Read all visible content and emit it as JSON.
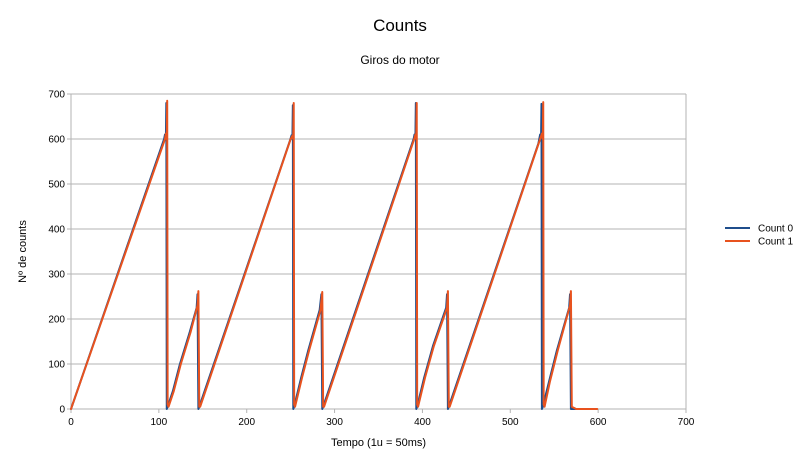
{
  "chart_data": {
    "type": "line",
    "title": "Counts",
    "subtitle": "Giros do motor",
    "xlabel": "Tempo (1u = 50ms)",
    "ylabel": "Nº de counts",
    "xlim": [
      0,
      700
    ],
    "ylim": [
      0,
      700
    ],
    "x_ticks": [
      0,
      100,
      200,
      300,
      400,
      500,
      600,
      700
    ],
    "y_ticks": [
      0,
      100,
      200,
      300,
      400,
      500,
      600,
      700
    ],
    "grid": "horizontal",
    "legend_position": "right",
    "series": [
      {
        "name": "Count 0",
        "color": "#1f4e8c",
        "points": [
          [
            0,
            0
          ],
          [
            106,
            600
          ],
          [
            107,
            610
          ],
          [
            108,
            600
          ],
          [
            108.5,
            680
          ],
          [
            109,
            0
          ],
          [
            110,
            5
          ],
          [
            116,
            40
          ],
          [
            124,
            100
          ],
          [
            135,
            170
          ],
          [
            143,
            225
          ],
          [
            144,
            255
          ],
          [
            145,
            0
          ],
          [
            146,
            5
          ],
          [
            249,
            595
          ],
          [
            251,
            608
          ],
          [
            252,
            600
          ],
          [
            252.5,
            675
          ],
          [
            253,
            0
          ],
          [
            254,
            5
          ],
          [
            262,
            70
          ],
          [
            270,
            130
          ],
          [
            283,
            220
          ],
          [
            285,
            255
          ],
          [
            286,
            0
          ],
          [
            287,
            5
          ],
          [
            390,
            600
          ],
          [
            391,
            610
          ],
          [
            392,
            600
          ],
          [
            392.5,
            680
          ],
          [
            393,
            0
          ],
          [
            394,
            5
          ],
          [
            402,
            70
          ],
          [
            412,
            140
          ],
          [
            427,
            225
          ],
          [
            428,
            255
          ],
          [
            429,
            0
          ],
          [
            430,
            5
          ],
          [
            532,
            590
          ],
          [
            534,
            610
          ],
          [
            535,
            598
          ],
          [
            535.5,
            678
          ],
          [
            536,
            0
          ],
          [
            537,
            5
          ],
          [
            544,
            60
          ],
          [
            553,
            130
          ],
          [
            567,
            225
          ],
          [
            568,
            255
          ],
          [
            569,
            0
          ],
          [
            570,
            0
          ],
          [
            574,
            0
          ]
        ]
      },
      {
        "name": "Count 1",
        "color": "#e8521e",
        "points": [
          [
            0,
            0
          ],
          [
            107,
            600
          ],
          [
            108,
            612
          ],
          [
            109,
            600
          ],
          [
            109.5,
            685
          ],
          [
            110,
            10
          ],
          [
            111,
            5
          ],
          [
            117,
            40
          ],
          [
            125,
            100
          ],
          [
            136,
            170
          ],
          [
            144,
            230
          ],
          [
            145,
            262
          ],
          [
            146,
            5
          ],
          [
            147,
            5
          ],
          [
            250,
            600
          ],
          [
            252,
            607
          ],
          [
            253,
            600
          ],
          [
            253.5,
            680
          ],
          [
            254,
            10
          ],
          [
            255,
            5
          ],
          [
            263,
            70
          ],
          [
            271,
            130
          ],
          [
            284,
            220
          ],
          [
            286,
            260
          ],
          [
            287,
            5
          ],
          [
            288,
            5
          ],
          [
            391,
            602
          ],
          [
            392,
            610
          ],
          [
            393,
            600
          ],
          [
            393.5,
            680
          ],
          [
            394,
            10
          ],
          [
            395,
            5
          ],
          [
            403,
            70
          ],
          [
            413,
            140
          ],
          [
            428,
            225
          ],
          [
            429,
            262
          ],
          [
            430,
            5
          ],
          [
            431,
            5
          ],
          [
            534,
            600
          ],
          [
            536,
            612
          ],
          [
            537,
            600
          ],
          [
            537.5,
            682
          ],
          [
            538,
            10
          ],
          [
            539,
            5
          ],
          [
            545,
            60
          ],
          [
            554,
            130
          ],
          [
            568,
            230
          ],
          [
            569,
            262
          ],
          [
            570,
            5
          ],
          [
            575,
            0
          ],
          [
            599,
            0
          ]
        ]
      }
    ]
  }
}
